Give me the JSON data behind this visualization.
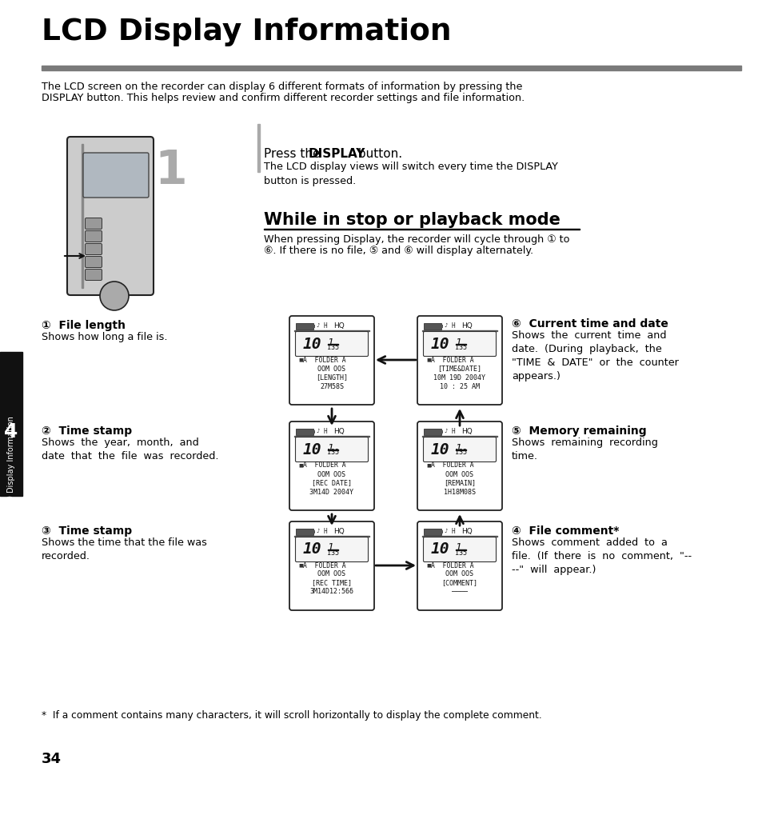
{
  "title": "LCD Display Information",
  "bg_color": "#ffffff",
  "text_color": "#000000",
  "gray_line_color": "#888888",
  "intro_text1": "The LCD screen on the recorder can display 6 different formats of information by pressing the",
  "intro_text2": "DISPLAY button. This helps review and confirm different recorder settings and file information.",
  "step1_pre": "Press the ",
  "step1_bold": "DISPLAY",
  "step1_post": " button.",
  "step1_sub": "The LCD display views will switch every time the DISPLAY\nbutton is pressed.",
  "section_title": "While in stop or playback mode",
  "section_desc1": "When pressing Display, the recorder will cycle through ① to",
  "section_desc2": "⑥. If there is no file, ⑤ and ⑥ will display alternately.",
  "item1_title": "①  File length",
  "item1_desc": "Shows how long a file is.",
  "item2_title": "②  Time stamp",
  "item2_desc": "Shows  the  year,  month,  and\ndate  that  the  file  was  recorded.",
  "item3_title": "③  Time stamp",
  "item3_desc": "Shows the time that the file was\nrecorded.",
  "item4_title": "④  File comment*",
  "item4_desc": "Shows  comment  added  to  a\nfile.  (If  there  is  no  comment,  \"--\n--\"  will  appear.)",
  "item5_title": "⑤  Memory remaining",
  "item5_desc": "Shows  remaining  recording\ntime.",
  "item6_title": "⑥  Current time and date",
  "item6_desc": "Shows  the  current  time  and\ndate.  (During  playback,  the\n\"TIME  &  DATE\"  or  the  counter\nappears.)",
  "footnote": "*  If a comment contains many characters, it will scroll horizontally to display the complete comment.",
  "page_number": "34",
  "side_label": "LCD Display Information",
  "chapter_number": "4",
  "lcd1_content": [
    "A  FOLDER A",
    "OOM OOS",
    "[LENGTH]",
    "27M58S"
  ],
  "lcd2_content": [
    "A  FOLDER A",
    "OOM OOS",
    "[REC DATE]",
    "3M14D 2004Y"
  ],
  "lcd3_content": [
    "A  FOLDER A",
    "OOM OOS",
    "[REC TIME]",
    "3M14D12:56δ"
  ],
  "lcd4_content": [
    "A  FOLDER A",
    "OOM OOS",
    "[COMMENT]",
    "————"
  ],
  "lcd5_content": [
    "A  FOLDER A",
    "OOM OOS",
    "[REMAIN]",
    "1H18M08S"
  ],
  "lcd6_content": [
    "A  FOLDER A",
    "[TIME&DATE]",
    "10M 19D 2004Y",
    "10 : 25 AM"
  ]
}
